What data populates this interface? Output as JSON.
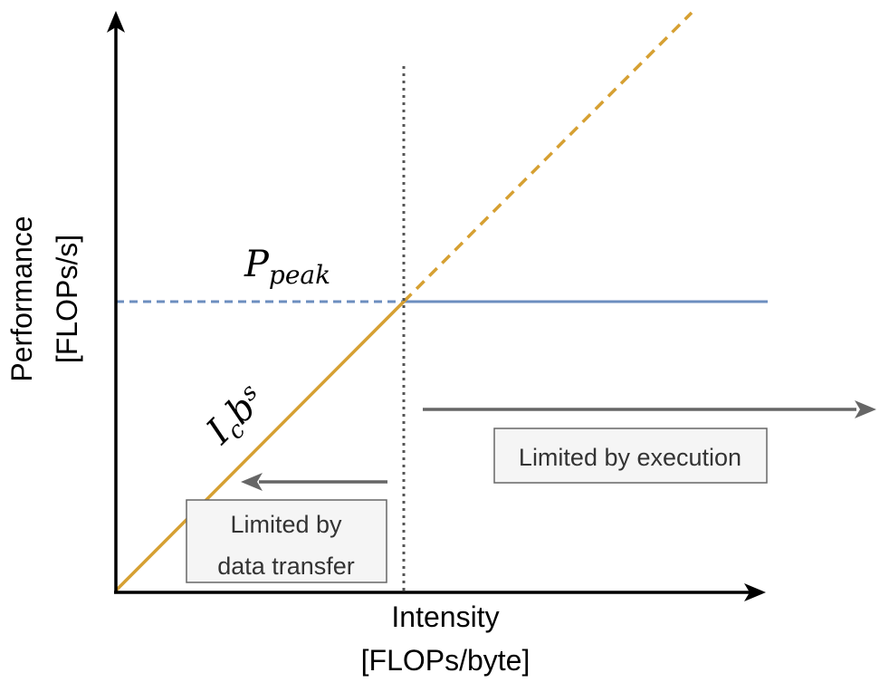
{
  "diagram": {
    "x_axis_title": [
      "Intensity",
      "[FLOPs/byte]"
    ],
    "y_axis_title": [
      "Performance",
      "[FLOPs/s]"
    ],
    "peak_label": {
      "main": "P",
      "sub": "peak"
    },
    "slope_label": {
      "main1": "I",
      "sub": "c",
      "main2": "b",
      "sub2": "s"
    },
    "data_transfer_box": [
      "Limited by",
      "data transfer"
    ],
    "execution_box": "Limited by execution",
    "colors": {
      "memory_line": "#D6A032",
      "peak_line": "#6C8EBF",
      "axis": "#000000",
      "ridge": "#555555",
      "arrow": "#666666",
      "box_fill": "#F5F5F5",
      "box_border": "#666666"
    }
  }
}
